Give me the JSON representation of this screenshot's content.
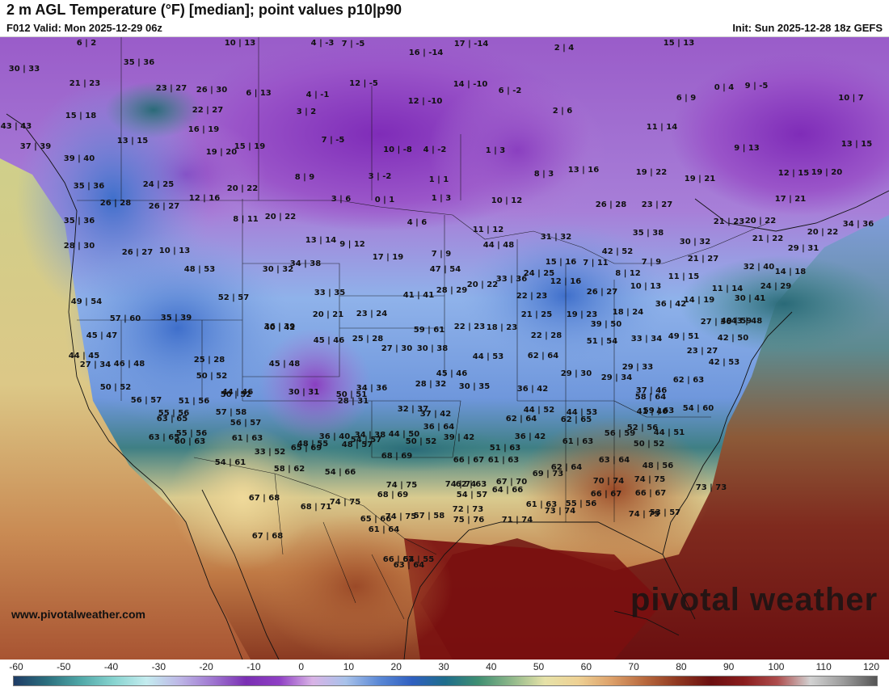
{
  "header": {
    "title": "2 m AGL Temperature (°F) [median]; point values p10|p90",
    "valid": "F012 Valid: Mon 2025-12-29 06z",
    "init": "Init: Sun 2025-12-28 18z GEFS"
  },
  "footer": {
    "source": "www.pivotalweather.com",
    "brand": "pivotal weather"
  },
  "colorbar": {
    "ticks": [
      "-60",
      "-50",
      "-40",
      "-30",
      "-20",
      "-10",
      "0",
      "10",
      "20",
      "30",
      "40",
      "50",
      "60",
      "70",
      "80",
      "90",
      "100",
      "110",
      "120"
    ],
    "colors": [
      "#1f3c66",
      "#2b6f7e",
      "#4fa7a7",
      "#86d3cf",
      "#c4ecef",
      "#bdb6e6",
      "#9f76d0",
      "#7a2fb3",
      "#8f3fc4",
      "#d9b3e6",
      "#a8c2ea",
      "#5b89d6",
      "#2f5fc0",
      "#1f6e8c",
      "#3f8f72",
      "#8fb88a",
      "#e6e2a8",
      "#eed194",
      "#dda16a",
      "#b8693e",
      "#8f3820",
      "#6b0f10",
      "#8a1d1d",
      "#ad4c4c",
      "#d2d2d2",
      "#9a9a9a",
      "#555555"
    ]
  },
  "map": {
    "fill_colors": {
      "ocean_pacific": "#dccd88",
      "ocean_atlantic": "#7f2a1e",
      "gulf": "#7a1010",
      "arctic_purple": "#8a3fc0",
      "northwest_blue": "#6b8fd9",
      "plains_blue": "#8fb2ea",
      "warm_south": "#b76b3c",
      "mexico_warm": "#c98a53"
    },
    "point_values": [
      "6 | 2",
      "10 | 13",
      "4 | -3",
      "7 | -5",
      "17 | -14",
      "16 | -14",
      "2 | 4",
      "15 | 13",
      "30 | 33",
      "35 | 36",
      "21 | 23",
      "23 | 27",
      "26 | 30",
      "6 | 13",
      "4 | -1",
      "12 | -5",
      "12 | -10",
      "14 | -10",
      "6 | -2",
      "0 | 4",
      "9 | -5",
      "15 | 18",
      "22 | 27",
      "3 | 2",
      "2 | 6",
      "6 | 9",
      "10 | 7",
      "43 | 43",
      "13 | 15",
      "16 | 19",
      "7 | -5",
      "10 | -8",
      "4 | -2",
      "1 | 3",
      "11 | 14",
      "9 | 13",
      "13 | 15",
      "37 | 39",
      "19 | 20",
      "15 | 19",
      "39 | 40",
      "8 | 9",
      "3 | -2",
      "8 | 3",
      "13 | 16",
      "19 | 22",
      "19 | 21",
      "12 | 15",
      "19 | 20",
      "35 | 36",
      "24 | 25",
      "20 | 22",
      "1 | 1",
      "10 | 12",
      "26 | 28",
      "23 | 27",
      "17 | 21",
      "26 | 28",
      "26 | 27",
      "12 | 16",
      "3 | 6",
      "0 | 1",
      "1 | 3",
      "21 | 23",
      "20 | 22",
      "35 | 36",
      "8 | 11",
      "20 | 22",
      "4 | 6",
      "11 | 12",
      "31 | 32",
      "35 | 38",
      "30 | 32",
      "29 | 31",
      "21 | 22",
      "20 | 22",
      "34 | 36",
      "28 | 30",
      "26 | 27",
      "10 | 13",
      "13 | 14",
      "9 | 12",
      "44 | 48",
      "42 | 52",
      "30 | 32",
      "34 | 38",
      "17 | 19",
      "7 | 9",
      "15 | 16",
      "7 | 11",
      "7 | 9",
      "21 | 27",
      "32 | 40",
      "48 | 53",
      "47 | 54",
      "33 | 36",
      "24 | 25",
      "8 | 12",
      "11 | 15",
      "14 | 18",
      "49 | 54",
      "52 | 57",
      "33 | 35",
      "41 | 41",
      "28 | 29",
      "20 | 22",
      "12 | 16",
      "10 | 13",
      "11 | 14",
      "24 | 29",
      "57 | 60",
      "35 | 39",
      "36 | 39",
      "20 | 21",
      "23 | 24",
      "22 | 23",
      "26 | 27",
      "14 | 19",
      "30 | 41",
      "36 | 42",
      "40 | 42",
      "59 | 61",
      "22 | 23",
      "18 | 23",
      "21 | 25",
      "19 | 23",
      "18 | 24",
      "27 | 36",
      "49 | 59",
      "43 | 48",
      "45 | 47",
      "45 | 46",
      "25 | 28",
      "22 | 28",
      "39 | 50",
      "49 | 51",
      "42 | 50",
      "44 | 45",
      "25 | 28",
      "27 | 30",
      "30 | 38",
      "44 | 53",
      "62 | 64",
      "51 | 54",
      "33 | 34",
      "23 | 27",
      "27 | 34",
      "46 | 48",
      "45 | 48",
      "45 | 46",
      "29 | 30",
      "29 | 33",
      "42 | 53",
      "50 | 52",
      "50 | 52",
      "44 | 46",
      "30 | 31",
      "34 | 36",
      "28 | 32",
      "30 | 35",
      "29 | 34",
      "62 | 63",
      "51 | 56",
      "50 | 52",
      "50 | 51",
      "28 | 31",
      "36 | 42",
      "37 | 46",
      "54 | 60",
      "56 | 57",
      "55 | 56",
      "57 | 58",
      "36 | 40",
      "34 | 38",
      "32 | 37",
      "37 | 42",
      "44 | 52",
      "58 | 64",
      "59 | 63",
      "63 | 65",
      "55 | 56",
      "56 | 57",
      "50 | 52",
      "39 | 42",
      "36 | 42",
      "41 | 46",
      "44 | 53",
      "63 | 65",
      "60 | 63",
      "61 | 63",
      "54 | 57",
      "44 | 50",
      "36 | 64",
      "62 | 64",
      "62 | 65",
      "52 | 56",
      "44 | 51",
      "48 | 55",
      "48 | 57",
      "51 | 63",
      "61 | 63",
      "56 | 59",
      "50 | 52",
      "33 | 52",
      "65 | 69",
      "68 | 69",
      "66 | 67",
      "61 | 63",
      "62 | 64",
      "63 | 64",
      "48 | 56",
      "54 | 61",
      "58 | 62",
      "54 | 66",
      "62 | 63",
      "67 | 70",
      "69 | 73",
      "70 | 74",
      "74 | 75",
      "74 | 75",
      "74 | 74",
      "68 | 69",
      "54 | 57",
      "64 | 66",
      "66 | 67",
      "66 | 67",
      "73 | 73",
      "67 | 68",
      "74 | 75",
      "74 | 75",
      "61 | 63",
      "55 | 56",
      "68 | 71",
      "65 | 66",
      "72 | 73",
      "74 | 75",
      "67 | 68",
      "61 | 64",
      "57 | 58",
      "75 | 76",
      "71 | 74",
      "73 | 74",
      "53 | 57",
      "66 | 67",
      "63 | 64",
      "54 | 55"
    ]
  }
}
